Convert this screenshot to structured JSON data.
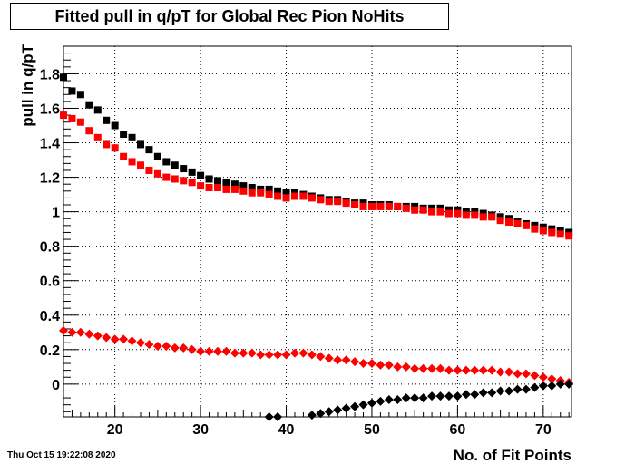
{
  "footer": {
    "timestamp": "Thu Oct 15 19:22:08 2020"
  },
  "chart_data": {
    "type": "scatter",
    "title": "Fitted pull in q/pT  for Global Rec Pion NoHits",
    "xlabel": "No. of Fit Points",
    "ylabel": "pull in q/pT",
    "xlim": [
      14,
      73.3
    ],
    "ylim": [
      -0.19,
      1.96
    ],
    "xticks": [
      20,
      30,
      40,
      50,
      60,
      70
    ],
    "yticks": [
      0,
      0.2,
      0.4,
      0.6,
      0.8,
      1,
      1.2,
      1.4,
      1.6,
      1.8
    ],
    "ytick_labels": [
      "0",
      "0.2",
      "0.4",
      "0.6",
      "0.8",
      "1",
      "1.2",
      "1.4",
      "1.6",
      "1.8"
    ],
    "grid": true,
    "series": [
      {
        "marker": "square",
        "color": "#000000",
        "x": [
          14,
          15,
          16,
          17,
          18,
          19,
          20,
          21,
          22,
          23,
          24,
          25,
          26,
          27,
          28,
          29,
          30,
          31,
          32,
          33,
          34,
          35,
          36,
          37,
          38,
          39,
          40,
          41,
          42,
          43,
          44,
          45,
          46,
          47,
          48,
          49,
          50,
          51,
          52,
          53,
          54,
          55,
          56,
          57,
          58,
          59,
          60,
          61,
          62,
          63,
          64,
          65,
          66,
          67,
          68,
          69,
          70,
          71,
          72,
          73
        ],
        "y": [
          1.78,
          1.7,
          1.68,
          1.62,
          1.59,
          1.53,
          1.5,
          1.45,
          1.43,
          1.39,
          1.36,
          1.32,
          1.29,
          1.27,
          1.25,
          1.23,
          1.21,
          1.19,
          1.18,
          1.17,
          1.16,
          1.15,
          1.14,
          1.13,
          1.13,
          1.12,
          1.11,
          1.11,
          1.1,
          1.09,
          1.08,
          1.07,
          1.07,
          1.06,
          1.05,
          1.05,
          1.04,
          1.04,
          1.04,
          1.03,
          1.03,
          1.03,
          1.02,
          1.02,
          1.02,
          1.01,
          1.01,
          1.0,
          1.0,
          0.99,
          0.98,
          0.97,
          0.96,
          0.94,
          0.93,
          0.92,
          0.91,
          0.9,
          0.89,
          0.88
        ]
      },
      {
        "marker": "square",
        "color": "#ff0000",
        "x": [
          14,
          15,
          16,
          17,
          18,
          19,
          20,
          21,
          22,
          23,
          24,
          25,
          26,
          27,
          28,
          29,
          30,
          31,
          32,
          33,
          34,
          35,
          36,
          37,
          38,
          39,
          40,
          41,
          42,
          43,
          44,
          45,
          46,
          47,
          48,
          49,
          50,
          51,
          52,
          53,
          54,
          55,
          56,
          57,
          58,
          59,
          60,
          61,
          62,
          63,
          64,
          65,
          66,
          67,
          68,
          69,
          70,
          71,
          72,
          73
        ],
        "y": [
          1.56,
          1.54,
          1.52,
          1.47,
          1.43,
          1.39,
          1.37,
          1.32,
          1.29,
          1.27,
          1.24,
          1.22,
          1.2,
          1.19,
          1.18,
          1.17,
          1.15,
          1.14,
          1.14,
          1.13,
          1.13,
          1.12,
          1.11,
          1.11,
          1.1,
          1.09,
          1.08,
          1.09,
          1.09,
          1.08,
          1.07,
          1.06,
          1.06,
          1.05,
          1.04,
          1.03,
          1.03,
          1.03,
          1.03,
          1.03,
          1.02,
          1.01,
          1.01,
          1.0,
          1.0,
          0.99,
          0.99,
          0.98,
          0.98,
          0.97,
          0.97,
          0.95,
          0.94,
          0.93,
          0.92,
          0.9,
          0.89,
          0.88,
          0.87,
          0.86
        ]
      },
      {
        "marker": "diamond",
        "color": "#ff0000",
        "x": [
          14,
          15,
          16,
          17,
          18,
          19,
          20,
          21,
          22,
          23,
          24,
          25,
          26,
          27,
          28,
          29,
          30,
          31,
          32,
          33,
          34,
          35,
          36,
          37,
          38,
          39,
          40,
          41,
          42,
          43,
          44,
          45,
          46,
          47,
          48,
          49,
          50,
          51,
          52,
          53,
          54,
          55,
          56,
          57,
          58,
          59,
          60,
          61,
          62,
          63,
          64,
          65,
          66,
          67,
          68,
          69,
          70,
          71,
          72,
          73
        ],
        "y": [
          0.31,
          0.3,
          0.3,
          0.29,
          0.28,
          0.27,
          0.26,
          0.26,
          0.25,
          0.24,
          0.23,
          0.22,
          0.22,
          0.21,
          0.21,
          0.2,
          0.19,
          0.19,
          0.19,
          0.19,
          0.18,
          0.18,
          0.18,
          0.17,
          0.17,
          0.17,
          0.17,
          0.18,
          0.18,
          0.17,
          0.16,
          0.15,
          0.14,
          0.14,
          0.13,
          0.12,
          0.12,
          0.11,
          0.11,
          0.1,
          0.1,
          0.09,
          0.09,
          0.09,
          0.09,
          0.08,
          0.08,
          0.08,
          0.08,
          0.08,
          0.08,
          0.07,
          0.07,
          0.06,
          0.06,
          0.05,
          0.04,
          0.03,
          0.02,
          0.01
        ]
      },
      {
        "marker": "diamond",
        "color": "#000000",
        "x": [
          38,
          39,
          43,
          44,
          45,
          46,
          47,
          48,
          49,
          50,
          51,
          52,
          53,
          54,
          55,
          56,
          57,
          58,
          59,
          60,
          61,
          62,
          63,
          64,
          65,
          66,
          67,
          68,
          69,
          70,
          71,
          72,
          73
        ],
        "y": [
          -0.19,
          -0.19,
          -0.18,
          -0.17,
          -0.16,
          -0.15,
          -0.14,
          -0.13,
          -0.12,
          -0.11,
          -0.1,
          -0.09,
          -0.09,
          -0.08,
          -0.08,
          -0.08,
          -0.07,
          -0.07,
          -0.07,
          -0.07,
          -0.06,
          -0.06,
          -0.05,
          -0.05,
          -0.04,
          -0.04,
          -0.03,
          -0.03,
          -0.02,
          -0.01,
          -0.01,
          0.0,
          0.0
        ]
      }
    ]
  }
}
